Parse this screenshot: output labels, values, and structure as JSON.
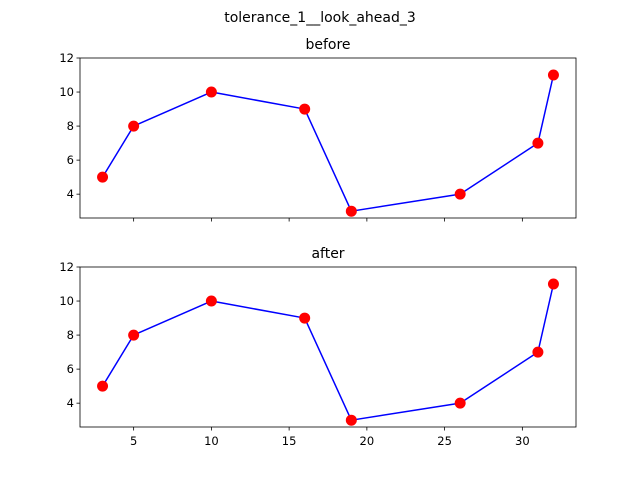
{
  "figure": {
    "suptitle": "tolerance_1__look_ahead_3"
  },
  "style": {
    "line_color": "#0000ff",
    "marker_color": "#ff0000"
  },
  "chart_data": [
    {
      "type": "line",
      "title": "before",
      "xlabel": "",
      "ylabel": "",
      "xlim": [
        1.55,
        33.45
      ],
      "ylim": [
        2.6,
        12.0
      ],
      "xticks": [
        5,
        10,
        15,
        20,
        25,
        30
      ],
      "xtick_labels_shown": false,
      "yticks": [
        4,
        6,
        8,
        10,
        12
      ],
      "grid": false,
      "series": [
        {
          "x": [
            3,
            5,
            10,
            16,
            19,
            26,
            31,
            32
          ],
          "y": [
            5,
            8,
            10,
            9,
            3,
            4,
            7,
            11
          ]
        }
      ]
    },
    {
      "type": "line",
      "title": "after",
      "xlabel": "",
      "ylabel": "",
      "xlim": [
        1.55,
        33.45
      ],
      "ylim": [
        2.6,
        12.0
      ],
      "xticks": [
        5,
        10,
        15,
        20,
        25,
        30
      ],
      "xtick_labels_shown": true,
      "yticks": [
        4,
        6,
        8,
        10,
        12
      ],
      "grid": false,
      "series": [
        {
          "x": [
            3,
            5,
            10,
            16,
            19,
            26,
            31,
            32
          ],
          "y": [
            5,
            8,
            10,
            9,
            3,
            4,
            7,
            11
          ]
        }
      ]
    }
  ]
}
